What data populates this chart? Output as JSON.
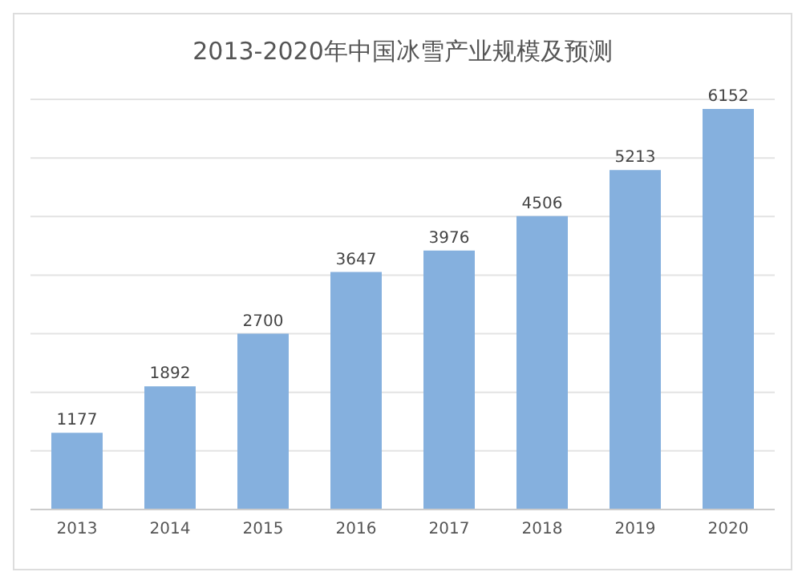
{
  "chart_data": {
    "type": "bar",
    "title": "2013-2020年中国冰雪产业规模及预测",
    "categories": [
      "2013",
      "2014",
      "2015",
      "2016",
      "2017",
      "2018",
      "2019",
      "2020"
    ],
    "values": [
      1177,
      1892,
      2700,
      3647,
      3976,
      4506,
      5213,
      6152
    ],
    "color": "#85b0de",
    "data_labels": true,
    "grid": "y",
    "tick_labels": "x"
  }
}
